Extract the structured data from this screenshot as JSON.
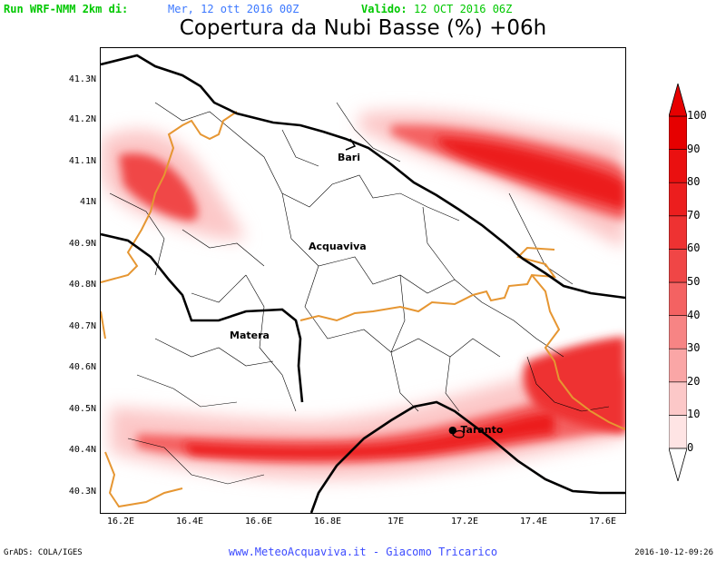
{
  "header": {
    "run_label": "Run WRF-NMM 2km di:",
    "run_date": "Mer, 12 ott 2016 00Z",
    "valid_label": "Valido:",
    "valid_date": "12 OCT 2016 06Z"
  },
  "title": "Copertura da Nubi Basse (%) +06h",
  "lat_labels": [
    "41.3N",
    "41.2N",
    "41.1N",
    "41N",
    "40.9N",
    "40.8N",
    "40.7N",
    "40.6N",
    "40.5N",
    "40.4N",
    "40.3N"
  ],
  "lon_labels": [
    "16.2E",
    "16.4E",
    "16.6E",
    "16.8E",
    "17E",
    "17.2E",
    "17.4E",
    "17.6E"
  ],
  "cities": [
    "Bari",
    "Acquaviva",
    "Matera",
    "Taranto"
  ],
  "colorbar_labels": [
    "100",
    "90",
    "80",
    "70",
    "60",
    "50",
    "40",
    "30",
    "20",
    "10",
    "0"
  ],
  "colors": {
    "coast": "#000000",
    "region_border": "#e69632",
    "cloud_ramp": [
      "#ffffff",
      "#fee4e4",
      "#fcc8c8",
      "#faa6a6",
      "#f78484",
      "#f46262",
      "#f04646",
      "#ee3232",
      "#ec1e1e",
      "#ea1010",
      "#e60000"
    ]
  },
  "footer": {
    "left": "GrADS: COLA/IGES",
    "center": "www.MeteoAcquaviva.it  -  Giacomo Tricarico",
    "right": "2016-10-12-09:26"
  }
}
